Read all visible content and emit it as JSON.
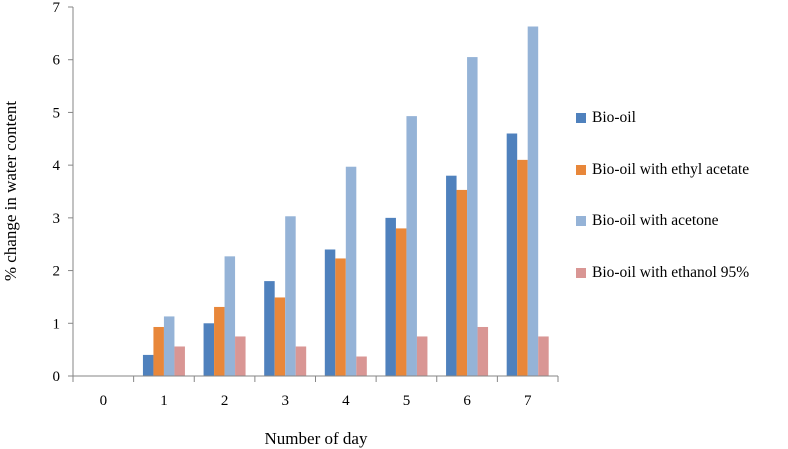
{
  "chart_data": {
    "type": "bar",
    "xlabel": "Number of day",
    "ylabel": "% change in water content",
    "categories": [
      "0",
      "1",
      "2",
      "3",
      "4",
      "5",
      "6",
      "7"
    ],
    "ylim": [
      0,
      7
    ],
    "yticks": [
      "0",
      "1",
      "2",
      "3",
      "4",
      "5",
      "6",
      "7"
    ],
    "grid": false,
    "legend_position": "right",
    "series": [
      {
        "name": "Bio-oil",
        "color": "#4F81BD",
        "values": [
          0,
          0.4,
          1.0,
          1.8,
          2.4,
          3.0,
          3.8,
          4.6
        ]
      },
      {
        "name": "Bio-oil with ethyl acetate",
        "color": "#E8873A",
        "values": [
          0,
          0.93,
          1.31,
          1.49,
          2.23,
          2.8,
          3.53,
          4.1
        ]
      },
      {
        "name": "Bio-oil with acetone",
        "color": "#95B3D7",
        "values": [
          0,
          1.13,
          2.27,
          3.03,
          3.97,
          4.93,
          6.05,
          6.63
        ]
      },
      {
        "name": "Bio-oil with ethanol 95%",
        "color": "#D99694",
        "values": [
          0,
          0.56,
          0.75,
          0.56,
          0.37,
          0.75,
          0.93,
          0.75
        ]
      }
    ]
  }
}
